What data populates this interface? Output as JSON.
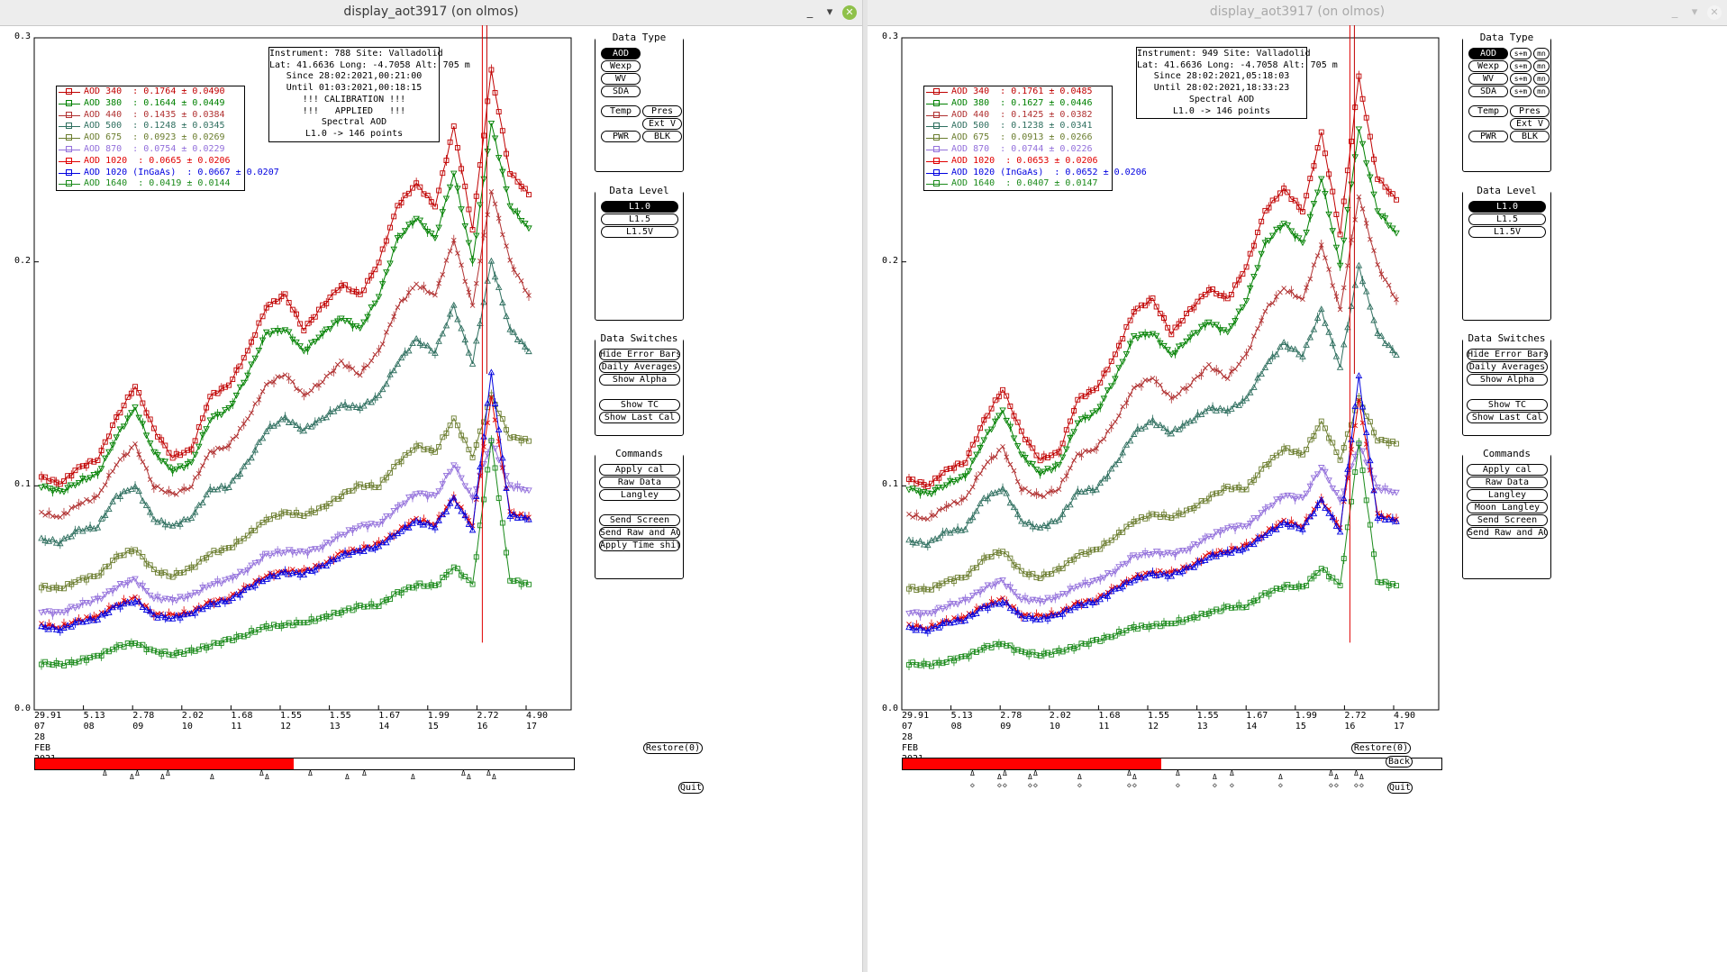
{
  "windows": [
    {
      "title": "display_aot3917 (on olmos)",
      "active": true,
      "controls": {
        "minimize": "_",
        "maximize": "▾",
        "close": "✕"
      },
      "info_lines": [
        "Instrument: 788 Site: Valladolid",
        "Lat: 41.6636 Long: -4.7058 Alt: 705 m",
        "Since 28:02:2021,00:21:00",
        "Until 01:03:2021,00:18:15",
        "!!! CALIBRATION !!!",
        "!!!   APPLIED   !!!",
        "Spectral AOD",
        "L1.0 -> 146 points"
      ],
      "legend": [
        {
          "label": "AOD 340  : 0.1764 ± 0.0490",
          "color": "#c00000"
        },
        {
          "label": "AOD 380  : 0.1644 ± 0.0449",
          "color": "#008000"
        },
        {
          "label": "AOD 440  : 0.1435 ± 0.0384",
          "color": "#b03030"
        },
        {
          "label": "AOD 500  : 0.1248 ± 0.0345",
          "color": "#2f6f5f"
        },
        {
          "label": "AOD 675  : 0.0923 ± 0.0269",
          "color": "#6b7d2f"
        },
        {
          "label": "AOD 870  : 0.0754 ± 0.0229",
          "color": "#9370db"
        },
        {
          "label": "AOD 1020  : 0.0665 ± 0.0206",
          "color": "#e00000"
        },
        {
          "label": "AOD 1020 (InGaAs)  : 0.0667 ± 0.0207",
          "color": "#0000e0"
        },
        {
          "label": "AOD 1640  : 0.0419 ± 0.0144",
          "color": "#1a8a1a"
        }
      ],
      "data_type": {
        "title": "Data Type",
        "buttons": [
          "AOD",
          "Wexp",
          "WV",
          "SDA",
          "Temp",
          "Pres",
          "Ext V",
          "PWR",
          "BLK"
        ],
        "selected": "AOD",
        "extra": []
      },
      "data_level": {
        "title": "Data Level",
        "buttons": [
          "L1.0",
          "L1.5",
          "L1.5V"
        ],
        "selected": "L1.0"
      },
      "data_switches": {
        "title": "Data Switches",
        "buttons": [
          "Hide Error Bars",
          "Daily Averages",
          "Show Alpha",
          "Show TC",
          "Show Last Cal"
        ]
      },
      "commands": {
        "title": "Commands",
        "buttons": [
          "Apply cal",
          "Raw Data",
          "Langley",
          "Send Screen",
          "Send Raw and AOD",
          "Apply Time shift"
        ]
      },
      "bottom_buttons": [
        "Restore(0)",
        "Quit"
      ]
    },
    {
      "title": "display_aot3917 (on olmos)",
      "active": false,
      "controls": {
        "minimize": "_",
        "maximize": "▾",
        "close": "✕"
      },
      "info_lines": [
        "Instrument: 949 Site: Valladolid",
        "Lat: 41.6636 Long: -4.7058 Alt: 705 m",
        "Since 28:02:2021,05:18:03",
        "Until 28:02:2021,18:33:23",
        "Spectral AOD",
        "L1.0 -> 146 points"
      ],
      "legend": [
        {
          "label": "AOD 340  : 0.1761 ± 0.0485",
          "color": "#c00000"
        },
        {
          "label": "AOD 380  : 0.1627 ± 0.0446",
          "color": "#008000"
        },
        {
          "label": "AOD 440  : 0.1425 ± 0.0382",
          "color": "#b03030"
        },
        {
          "label": "AOD 500  : 0.1238 ± 0.0341",
          "color": "#2f6f5f"
        },
        {
          "label": "AOD 675  : 0.0913 ± 0.0266",
          "color": "#6b7d2f"
        },
        {
          "label": "AOD 870  : 0.0744 ± 0.0226",
          "color": "#9370db"
        },
        {
          "label": "AOD 1020  : 0.0653 ± 0.0206",
          "color": "#e00000"
        },
        {
          "label": "AOD 1020 (InGaAs)  : 0.0652 ± 0.0206",
          "color": "#0000e0"
        },
        {
          "label": "AOD 1640  : 0.0407 ± 0.0147",
          "color": "#1a8a1a"
        }
      ],
      "data_type": {
        "title": "Data Type",
        "buttons": [
          "AOD",
          "Wexp",
          "WV",
          "SDA",
          "Temp",
          "Pres",
          "Ext V",
          "PWR",
          "BLK"
        ],
        "selected": "AOD",
        "extra": [
          "s+m",
          "mn"
        ]
      },
      "data_level": {
        "title": "Data Level",
        "buttons": [
          "L1.0",
          "L1.5",
          "L1.5V"
        ],
        "selected": "L1.0"
      },
      "data_switches": {
        "title": "Data Switches",
        "buttons": [
          "Hide Error Bars",
          "Daily Averages",
          "Show Alpha",
          "Show TC",
          "Show Last Cal"
        ]
      },
      "commands": {
        "title": "Commands",
        "buttons": [
          "Apply cal",
          "Raw Data",
          "Langley",
          "Moon Langley",
          "Send Screen",
          "Send Raw and AOD"
        ]
      },
      "bottom_buttons": [
        "Restore(0)",
        "Back",
        "Quit"
      ]
    }
  ],
  "axis": {
    "y_ticks": [
      "0.3",
      "0.2",
      "0.1",
      "0.0"
    ],
    "x_ticks": [
      {
        "value": "29.91",
        "hour": "07"
      },
      {
        "value": "5.13",
        "hour": "08"
      },
      {
        "value": "2.78",
        "hour": "09"
      },
      {
        "value": "2.02",
        "hour": "10"
      },
      {
        "value": "1.68",
        "hour": "11"
      },
      {
        "value": "1.55",
        "hour": "12"
      },
      {
        "value": "1.55",
        "hour": "13"
      },
      {
        "value": "1.67",
        "hour": "14"
      },
      {
        "value": "1.99",
        "hour": "15"
      },
      {
        "value": "2.72",
        "hour": "16"
      },
      {
        "value": "4.90",
        "hour": "17"
      }
    ],
    "date_lines": [
      "28",
      "FEB",
      "2021"
    ],
    "ylim": [
      0,
      0.3
    ]
  },
  "timeline_fill_fraction": 0.48,
  "chart_data": {
    "type": "line",
    "x_label_positions": [
      "07",
      "08",
      "09",
      "10",
      "11",
      "12",
      "13",
      "14",
      "15",
      "16",
      "17"
    ],
    "ylim": [
      0,
      0.3
    ],
    "series": [
      {
        "name": "AOD 340",
        "color": "#c00000",
        "marker": "square",
        "values": [
          0.104,
          0.101,
          0.108,
          0.112,
          0.13,
          0.145,
          0.125,
          0.113,
          0.116,
          0.14,
          0.145,
          0.16,
          0.18,
          0.185,
          0.17,
          0.18,
          0.19,
          0.185,
          0.2,
          0.225,
          0.235,
          0.225,
          0.26,
          0.215,
          0.285,
          0.24,
          0.23
        ]
      },
      {
        "name": "AOD 380",
        "color": "#008000",
        "marker": "triangle-down",
        "values": [
          0.1,
          0.097,
          0.102,
          0.105,
          0.122,
          0.135,
          0.115,
          0.107,
          0.11,
          0.13,
          0.134,
          0.15,
          0.168,
          0.17,
          0.16,
          0.168,
          0.175,
          0.17,
          0.185,
          0.21,
          0.22,
          0.21,
          0.24,
          0.2,
          0.262,
          0.225,
          0.215
        ]
      },
      {
        "name": "AOD 440",
        "color": "#b03030",
        "marker": "x",
        "values": [
          0.088,
          0.086,
          0.092,
          0.095,
          0.11,
          0.118,
          0.1,
          0.096,
          0.1,
          0.115,
          0.118,
          0.13,
          0.145,
          0.15,
          0.14,
          0.147,
          0.155,
          0.15,
          0.16,
          0.18,
          0.19,
          0.185,
          0.21,
          0.18,
          0.232,
          0.2,
          0.185
        ]
      },
      {
        "name": "AOD 500",
        "color": "#2f6f5f",
        "marker": "triangle",
        "values": [
          0.076,
          0.075,
          0.08,
          0.082,
          0.095,
          0.1,
          0.085,
          0.082,
          0.086,
          0.098,
          0.1,
          0.11,
          0.125,
          0.13,
          0.125,
          0.13,
          0.136,
          0.135,
          0.14,
          0.155,
          0.165,
          0.16,
          0.18,
          0.155,
          0.2,
          0.17,
          0.16
        ]
      },
      {
        "name": "AOD 675",
        "color": "#6b7d2f",
        "marker": "square",
        "values": [
          0.055,
          0.054,
          0.058,
          0.06,
          0.068,
          0.072,
          0.062,
          0.06,
          0.063,
          0.07,
          0.072,
          0.078,
          0.085,
          0.088,
          0.087,
          0.09,
          0.096,
          0.1,
          0.1,
          0.11,
          0.118,
          0.115,
          0.13,
          0.113,
          0.14,
          0.122,
          0.12
        ]
      },
      {
        "name": "AOD 870",
        "color": "#9370db",
        "marker": "triangle-down",
        "values": [
          0.044,
          0.043,
          0.047,
          0.049,
          0.055,
          0.058,
          0.05,
          0.049,
          0.051,
          0.056,
          0.058,
          0.063,
          0.069,
          0.071,
          0.07,
          0.073,
          0.078,
          0.082,
          0.083,
          0.09,
          0.097,
          0.095,
          0.11,
          0.094,
          0.12,
          0.1,
          0.098
        ]
      },
      {
        "name": "AOD 1020",
        "color": "#e00000",
        "marker": "x",
        "values": [
          0.038,
          0.037,
          0.04,
          0.042,
          0.047,
          0.05,
          0.043,
          0.042,
          0.044,
          0.048,
          0.05,
          0.055,
          0.06,
          0.062,
          0.062,
          0.065,
          0.07,
          0.072,
          0.074,
          0.08,
          0.085,
          0.083,
          0.095,
          0.082,
          0.14,
          0.088,
          0.086
        ]
      },
      {
        "name": "AOD 1020 (InGaAs)",
        "color": "#0000e0",
        "marker": "triangle",
        "values": [
          0.037,
          0.036,
          0.039,
          0.041,
          0.046,
          0.049,
          0.042,
          0.041,
          0.043,
          0.047,
          0.049,
          0.054,
          0.059,
          0.061,
          0.061,
          0.064,
          0.069,
          0.071,
          0.073,
          0.079,
          0.084,
          0.082,
          0.094,
          0.081,
          0.15,
          0.087,
          0.085
        ]
      },
      {
        "name": "AOD 1640",
        "color": "#1a8a1a",
        "marker": "square",
        "values": [
          0.021,
          0.02,
          0.022,
          0.024,
          0.028,
          0.03,
          0.026,
          0.025,
          0.026,
          0.029,
          0.031,
          0.034,
          0.037,
          0.038,
          0.039,
          0.041,
          0.044,
          0.046,
          0.047,
          0.052,
          0.056,
          0.055,
          0.064,
          0.056,
          0.12,
          0.058,
          0.056
        ]
      }
    ]
  }
}
